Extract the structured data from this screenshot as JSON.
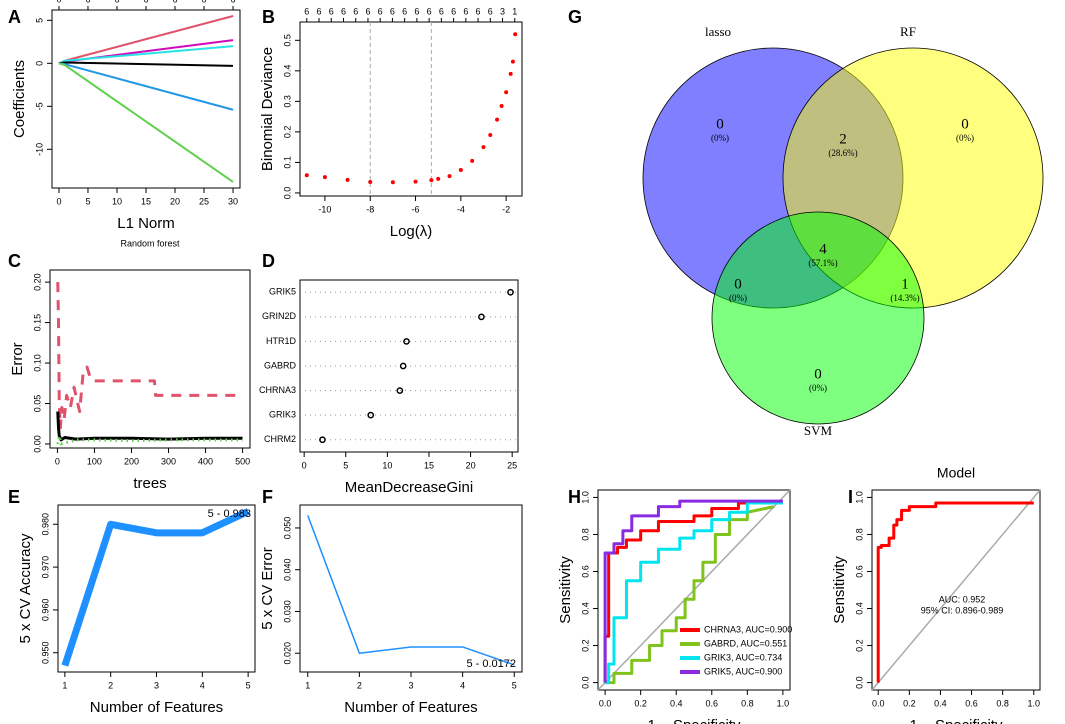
{
  "chart_data": [
    {
      "type": "line",
      "label": "A",
      "xlabel": "L1 Norm",
      "ylabel": "Coefficients",
      "x": [
        0,
        1,
        30
      ],
      "xlim": [
        -1.2,
        31.2
      ],
      "xticks": [
        0,
        5,
        10,
        15,
        20,
        25,
        30
      ],
      "ylim": [
        -14.5,
        6.2
      ],
      "yticks": [
        -10,
        -5,
        0,
        5
      ],
      "x2ticks": [
        {
          "value": 0,
          "label": "0"
        },
        {
          "value": 5,
          "label": "6"
        },
        {
          "value": 10,
          "label": "6"
        },
        {
          "value": 15,
          "label": "6"
        },
        {
          "value": 20,
          "label": "6"
        },
        {
          "value": 25,
          "label": "6"
        },
        {
          "value": 30,
          "label": "6"
        }
      ],
      "series": [
        {
          "color": "#df536b",
          "values": [
            0,
            0.3,
            5.5
          ]
        },
        {
          "color": "#cd0bbc",
          "values": [
            0,
            0.2,
            2.7
          ]
        },
        {
          "color": "#28e2e5",
          "values": [
            0,
            0.3,
            2.0
          ]
        },
        {
          "color": "#000000",
          "values": [
            0,
            0.1,
            -0.3
          ]
        },
        {
          "color": "#2297e6",
          "values": [
            0,
            -0.1,
            -5.4
          ]
        },
        {
          "color": "#61d04f",
          "values": [
            0,
            -0.2,
            -13.8
          ]
        }
      ]
    },
    {
      "type": "scatter",
      "label": "B",
      "xlabel": "Log(λ)",
      "ylabel": "Binomial Deviance",
      "x": [
        -10.8,
        -10,
        -9,
        -8,
        -7,
        -6,
        -5.3,
        -5,
        -4.5,
        -4,
        -3.5,
        -3,
        -2.7,
        -2.4,
        -2.2,
        -2,
        -1.8,
        -1.7,
        -1.6
      ],
      "xlim": [
        -11.1,
        -1.3
      ],
      "xticks": [
        -10,
        -8,
        -6,
        -4,
        -2
      ],
      "ylim": [
        -0.01,
        0.56
      ],
      "yticks": [
        {
          "value": 0,
          "label": "0.0"
        },
        0.1,
        0.2,
        0.3,
        0.4,
        0.5
      ],
      "vlines": [
        -8,
        -5.3
      ],
      "x2ticks": [
        {
          "value": -10.8,
          "label": "6"
        },
        {
          "value": -10.26,
          "label": "6"
        },
        {
          "value": -9.72,
          "label": "6"
        },
        {
          "value": -9.18,
          "label": "6"
        },
        {
          "value": -8.64,
          "label": "6"
        },
        {
          "value": -8.1,
          "label": "6"
        },
        {
          "value": -7.56,
          "label": "6"
        },
        {
          "value": -7.02,
          "label": "6"
        },
        {
          "value": -6.48,
          "label": "6"
        },
        {
          "value": -5.94,
          "label": "6"
        },
        {
          "value": -5.4,
          "label": "6"
        },
        {
          "value": -4.86,
          "label": "6"
        },
        {
          "value": -4.32,
          "label": "6"
        },
        {
          "value": -3.78,
          "label": "6"
        },
        {
          "value": -3.24,
          "label": "6"
        },
        {
          "value": -2.7,
          "label": "6"
        },
        {
          "value": -2.16,
          "label": "3"
        },
        {
          "value": -1.62,
          "label": "1"
        }
      ],
      "series": [
        {
          "color": "#ff0000",
          "values": [
            0.058,
            0.052,
            0.043,
            0.036,
            0.035,
            0.037,
            0.042,
            0.046,
            0.055,
            0.075,
            0.105,
            0.15,
            0.19,
            0.24,
            0.285,
            0.33,
            0.39,
            0.43,
            0.52
          ]
        }
      ]
    },
    {
      "type": "line",
      "label": "C",
      "title": "Random forest",
      "xlabel": "trees",
      "ylabel": "Error",
      "xlim": [
        -20,
        520
      ],
      "xticks": [
        0,
        100,
        200,
        300,
        400,
        500
      ],
      "ylim": [
        -0.005,
        0.215
      ],
      "yticks": [
        {
          "value": 0,
          "label": "0.00"
        },
        {
          "value": 0.05,
          "label": "0.05"
        },
        {
          "value": 0.1,
          "label": "0.10"
        },
        {
          "value": 0.15,
          "label": "0.15"
        },
        {
          "value": 0.2,
          "label": "0.20"
        }
      ],
      "series": [
        {
          "color": "#df536b",
          "dash": "dashed",
          "x": [
            1,
            3,
            5,
            8,
            12,
            18,
            25,
            35,
            45,
            60,
            70,
            80,
            90,
            100,
            150,
            200,
            262,
            265,
            300,
            400,
            500
          ],
          "values": [
            0.2,
            0.15,
            0.05,
            0.02,
            0.045,
            0.03,
            0.06,
            0.045,
            0.07,
            0.04,
            0.09,
            0.095,
            0.08,
            0.078,
            0.078,
            0.078,
            0.078,
            0.06,
            0.06,
            0.06,
            0.06
          ]
        },
        {
          "color": "#000000",
          "dash": "solid",
          "x": [
            1,
            3,
            5,
            10,
            20,
            50,
            100,
            200,
            300,
            400,
            500
          ],
          "values": [
            0.04,
            0.02,
            0.01,
            0.005,
            0.008,
            0.006,
            0.007,
            0.007,
            0.006,
            0.007,
            0.007
          ]
        },
        {
          "color": "#61d04f",
          "dash": "dotted",
          "x": [
            1,
            5,
            10,
            50,
            100,
            200,
            300,
            500
          ],
          "values": [
            0,
            0.01,
            0,
            0.005,
            0.005,
            0.004,
            0.005,
            0.005
          ]
        }
      ]
    },
    {
      "type": "dot",
      "label": "D",
      "xlabel": "MeanDecreaseGini",
      "categories": [
        "GRIK5",
        "GRIN2D",
        "HTR1D",
        "GABRD",
        "CHRNA3",
        "GRIK3",
        "CHRM2"
      ],
      "values": [
        24.8,
        21.3,
        12.3,
        11.9,
        11.5,
        8.0,
        2.2
      ],
      "xlim": [
        -0.5,
        25.7
      ],
      "xticks": [
        0,
        5,
        10,
        15,
        20,
        25
      ]
    },
    {
      "type": "line",
      "label": "E",
      "xlabel": "Number of Features",
      "ylabel": "5 x CV Accuracy",
      "x": [
        1,
        2,
        3,
        4,
        5
      ],
      "xlim": [
        0.85,
        5.15
      ],
      "xticks": [
        1,
        2,
        3,
        4,
        5
      ],
      "ylim": [
        0.9455,
        0.9845
      ],
      "yticks": [
        {
          "value": 0.95,
          "label": "0.950"
        },
        {
          "value": 0.96,
          "label": "0.960"
        },
        {
          "value": 0.97,
          "label": "0.970"
        },
        {
          "value": 0.98,
          "label": "0.980"
        }
      ],
      "annotations": [
        "5 - 0.983"
      ],
      "series": [
        {
          "color": "#1e90ff",
          "values": [
            0.947,
            0.98,
            0.978,
            0.978,
            0.983
          ]
        }
      ]
    },
    {
      "type": "line",
      "label": "F",
      "xlabel": "Number of Features",
      "ylabel": "5 x CV Error",
      "x": [
        1,
        2,
        3,
        4,
        5
      ],
      "xlim": [
        0.85,
        5.15
      ],
      "xticks": [
        1,
        2,
        3,
        4,
        5
      ],
      "ylim": [
        0.0155,
        0.0555
      ],
      "yticks": [
        {
          "value": 0.02,
          "label": "0.020"
        },
        {
          "value": 0.03,
          "label": "0.030"
        },
        {
          "value": 0.04,
          "label": "0.040"
        },
        {
          "value": 0.05,
          "label": "0.050"
        }
      ],
      "annotations": [
        "5 - 0.0172"
      ],
      "series": [
        {
          "color": "#1e90ff",
          "values": [
            0.053,
            0.02,
            0.0215,
            0.0215,
            0.0172
          ]
        }
      ]
    },
    {
      "type": "venn",
      "label": "G",
      "sets": [
        {
          "name": "lasso",
          "color": "#0000ff",
          "text_color": "#3333cc"
        },
        {
          "name": "RF",
          "color": "#ffff00",
          "text_color": "#999933"
        },
        {
          "name": "SVM",
          "color": "#00ff00",
          "text_color": "#33aa33"
        }
      ],
      "values": [
        0,
        2,
        0,
        0,
        4,
        1,
        0
      ],
      "value_labels": [
        "(0%)",
        "(28.6%)",
        "(0%)",
        "(0%)",
        "(57.1%)",
        "(14.3%)",
        "(0%)"
      ]
    },
    {
      "type": "line",
      "label": "H",
      "xlabel": "1 − Specificity",
      "ylabel": "Sensitivity",
      "legend": "bottom-right",
      "xlim": [
        -0.04,
        1.04
      ],
      "ylim": [
        -0.04,
        1.04
      ],
      "xticks": [
        {
          "value": 0,
          "label": "0.0"
        },
        0.2,
        0.4,
        0.6,
        0.8,
        {
          "value": 1,
          "label": "1.0"
        }
      ],
      "yticks": [
        {
          "value": 0,
          "label": "0.0"
        },
        0.2,
        0.4,
        0.6,
        0.8,
        {
          "value": 1,
          "label": "1.0"
        }
      ],
      "diagonal": true,
      "series": [
        {
          "name": "CHRNA3, AUC=0.900",
          "color": "#ff0000",
          "x": [
            0,
            0,
            0.02,
            0.02,
            0.07,
            0.07,
            0.12,
            0.12,
            0.2,
            0.2,
            0.3,
            0.3,
            0.5,
            0.5,
            0.6,
            0.6,
            0.75,
            0.75,
            1
          ],
          "values": [
            0,
            0.25,
            0.25,
            0.7,
            0.7,
            0.73,
            0.73,
            0.77,
            0.77,
            0.82,
            0.82,
            0.87,
            0.87,
            0.9,
            0.9,
            0.94,
            0.94,
            0.97,
            0.97
          ]
        },
        {
          "name": "GABRD, AUC=0.551",
          "color": "#7fc31c",
          "x": [
            0,
            0.05,
            0.05,
            0.15,
            0.15,
            0.25,
            0.25,
            0.32,
            0.32,
            0.4,
            0.4,
            0.45,
            0.45,
            0.5,
            0.5,
            0.55,
            0.55,
            0.62,
            0.62,
            0.7,
            0.7,
            0.8,
            0.8,
            0.95
          ],
          "values": [
            0,
            0,
            0.05,
            0.05,
            0.12,
            0.12,
            0.2,
            0.2,
            0.28,
            0.28,
            0.35,
            0.35,
            0.45,
            0.45,
            0.55,
            0.55,
            0.65,
            0.65,
            0.8,
            0.8,
            0.88,
            0.88,
            0.92,
            0.95
          ]
        },
        {
          "name": "GRIK3, AUC=0.734",
          "color": "#00e5ee",
          "x": [
            0,
            0.02,
            0.02,
            0.05,
            0.05,
            0.12,
            0.12,
            0.2,
            0.2,
            0.3,
            0.3,
            0.42,
            0.42,
            0.5,
            0.5,
            0.6,
            0.6,
            0.7,
            0.7,
            0.8,
            0.8,
            1
          ],
          "values": [
            0,
            0,
            0.1,
            0.1,
            0.35,
            0.35,
            0.55,
            0.55,
            0.65,
            0.65,
            0.72,
            0.72,
            0.78,
            0.78,
            0.82,
            0.82,
            0.88,
            0.88,
            0.92,
            0.92,
            0.97,
            0.97
          ]
        },
        {
          "name": "GRIK5, AUC=0.900",
          "color": "#8a2be2",
          "x": [
            0,
            0,
            0.05,
            0.05,
            0.1,
            0.1,
            0.15,
            0.15,
            0.3,
            0.3,
            0.42,
            0.42,
            1
          ],
          "values": [
            0,
            0.7,
            0.7,
            0.75,
            0.75,
            0.82,
            0.82,
            0.9,
            0.9,
            0.95,
            0.95,
            0.98,
            0.98
          ]
        }
      ]
    },
    {
      "type": "line",
      "label": "I",
      "title": "Model",
      "xlabel": "1 − Specificity",
      "ylabel": "Sensitivity",
      "xlim": [
        -0.04,
        1.04
      ],
      "ylim": [
        -0.04,
        1.04
      ],
      "xticks": [
        {
          "value": 0,
          "label": "0.0"
        },
        0.2,
        0.4,
        0.6,
        0.8,
        {
          "value": 1,
          "label": "1.0"
        }
      ],
      "yticks": [
        {
          "value": 0,
          "label": "0.0"
        },
        0.2,
        0.4,
        0.6,
        0.8,
        {
          "value": 1,
          "label": "1.0"
        }
      ],
      "diagonal": true,
      "annotations": [
        "AUC: 0.952",
        "95% CI: 0.896-0.989"
      ],
      "series": [
        {
          "color": "#ff0000",
          "x": [
            0,
            0,
            0.02,
            0.02,
            0.07,
            0.07,
            0.1,
            0.1,
            0.12,
            0.12,
            0.15,
            0.15,
            0.2,
            0.2,
            0.37,
            0.37,
            1
          ],
          "values": [
            0,
            0.73,
            0.73,
            0.74,
            0.74,
            0.78,
            0.78,
            0.85,
            0.85,
            0.88,
            0.88,
            0.93,
            0.93,
            0.95,
            0.95,
            0.97,
            0.97
          ]
        }
      ]
    }
  ]
}
